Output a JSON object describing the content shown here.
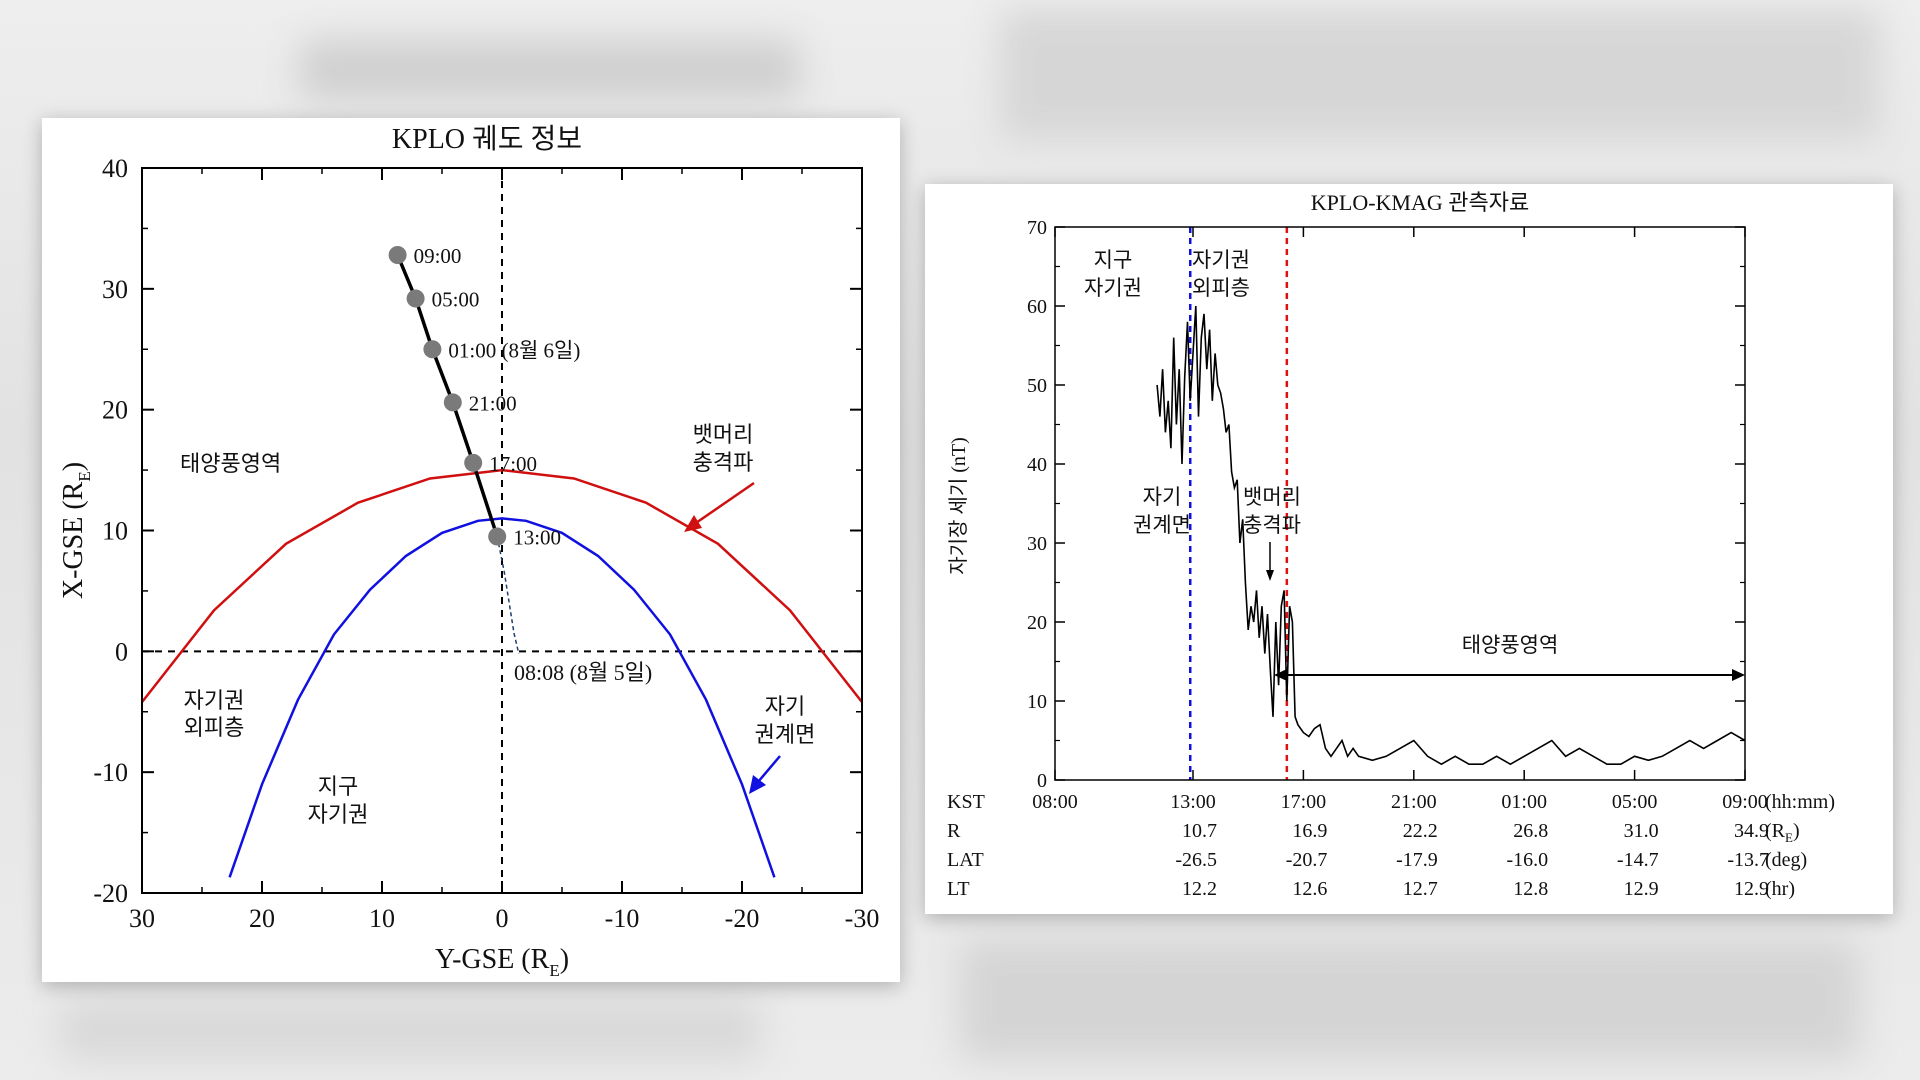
{
  "chart_data": [
    {
      "type": "line",
      "title": "KPLO 궤도 정보",
      "xlabel": "Y-GSE (R",
      "xlabel_sub": "E",
      "xlabel_close": ")",
      "ylabel": "X-GSE (R",
      "ylabel_sub": "E",
      "ylabel_close": ")",
      "xlim": [
        30,
        -30
      ],
      "ylim": [
        -20,
        40
      ],
      "x_ticks": [
        30,
        20,
        10,
        0,
        -10,
        -20,
        -30
      ],
      "y_ticks": [
        -20,
        -10,
        0,
        10,
        20,
        30,
        40
      ],
      "series": [
        {
          "color": "#d01010",
          "x": [
            30,
            24,
            18,
            12,
            6,
            0,
            -6,
            -12,
            -18,
            -24,
            -30
          ],
          "y": [
            -4.2,
            3.4,
            8.9,
            12.3,
            14.3,
            15,
            14.3,
            12.3,
            8.9,
            3.4,
            -4.2
          ]
        },
        {
          "color": "#1010e0",
          "x": [
            22.7,
            20,
            17,
            14,
            11,
            8,
            5,
            2,
            0,
            -2,
            -5,
            -8,
            -11,
            -14,
            -17,
            -20,
            -22.7
          ],
          "y": [
            -18.7,
            -11,
            -4,
            1.4,
            5.1,
            7.9,
            9.8,
            10.8,
            11,
            10.8,
            9.8,
            7.9,
            5.1,
            1.4,
            -4,
            -11,
            -18.7
          ]
        },
        {
          "color": "#000000",
          "x": [
            8.7,
            7.2,
            5.8,
            4.1,
            2.4,
            0.4
          ],
          "y": [
            32.8,
            29.2,
            25,
            20.6,
            15.6,
            9.5
          ]
        },
        {
          "color": "#1f3f6f",
          "dashed": true,
          "x": [
            0.4,
            -0.2,
            -0.6,
            -1.0,
            -1.4
          ],
          "y": [
            9.5,
            6.5,
            4,
            1.5,
            -0.2
          ]
        }
      ],
      "points": [
        {
          "x": 8.7,
          "y": 32.8,
          "label": "09:00"
        },
        {
          "x": 7.2,
          "y": 29.2,
          "label": "05:00"
        },
        {
          "x": 5.8,
          "y": 25.0,
          "label": "01:00 (8월 6일)"
        },
        {
          "x": 4.1,
          "y": 20.6,
          "label": "21:00"
        },
        {
          "x": 2.4,
          "y": 15.6,
          "label": "17:00"
        },
        {
          "x": 0.4,
          "y": 9.5,
          "label": "13:00"
        }
      ],
      "annotations": [
        {
          "text": "08:08 (8월 5일)"
        },
        {
          "lines": [
            "태양풍영역"
          ]
        },
        {
          "lines": [
            "뱃머리",
            "충격파"
          ],
          "color": "#d01010"
        },
        {
          "lines": [
            "자기권",
            "외피층"
          ]
        },
        {
          "lines": [
            "지구",
            "자기권"
          ]
        },
        {
          "lines": [
            "자기",
            "권계면"
          ],
          "color": "#1010e0"
        }
      ],
      "grid": false
    },
    {
      "type": "line",
      "title": "KPLO-KMAG  관측자료",
      "ylabel": "자기장 세기 (nT)",
      "xlim": [
        8.0,
        33.0
      ],
      "ylim": [
        0,
        70
      ],
      "x_unit": "hours KST (8월 5일 08:00 → 8월 6일 09:00)",
      "y_ticks": [
        0,
        10,
        20,
        30,
        40,
        50,
        60,
        70
      ],
      "x_ticks": [
        8,
        13,
        17,
        21,
        25,
        29,
        33
      ],
      "series": [
        {
          "name": "",
          "color": "#000000",
          "x": [
            11.7,
            11.8,
            11.9,
            12.0,
            12.1,
            12.2,
            12.3,
            12.4,
            12.5,
            12.6,
            12.7,
            12.8,
            12.9,
            13.0,
            13.1,
            13.2,
            13.3,
            13.4,
            13.5,
            13.6,
            13.7,
            13.8,
            13.9,
            14.0,
            14.1,
            14.2,
            14.3,
            14.4,
            14.5,
            14.6,
            14.7,
            14.8,
            14.9,
            15.0,
            15.1,
            15.2,
            15.3,
            15.4,
            15.5,
            15.6,
            15.7,
            15.8,
            15.9,
            16.0,
            16.1,
            16.2,
            16.3,
            16.4,
            16.5,
            16.6,
            16.7,
            16.8,
            17.0,
            17.2,
            17.4,
            17.6,
            17.8,
            18.0,
            18.2,
            18.4,
            18.6,
            18.8,
            19.0,
            19.5,
            20.0,
            20.5,
            21.0,
            21.5,
            22.0,
            22.5,
            23.0,
            23.5,
            24.0,
            24.5,
            25.0,
            25.5,
            26.0,
            26.5,
            27.0,
            27.5,
            28.0,
            28.5,
            29.0,
            29.5,
            30.0,
            30.5,
            31.0,
            31.5,
            32.0,
            32.5,
            33.0
          ],
          "y": [
            50,
            46,
            52,
            44,
            48,
            42,
            56,
            45,
            52,
            40,
            51,
            58,
            48,
            54,
            60,
            46,
            56,
            59,
            52,
            57,
            48,
            54,
            50,
            49,
            47,
            44,
            45,
            39,
            37,
            38,
            30,
            33,
            25,
            19,
            22,
            20,
            24,
            18,
            22,
            16,
            21,
            14,
            8,
            20,
            12,
            22,
            24,
            10,
            22,
            20,
            8,
            7,
            6,
            5.5,
            6.5,
            7,
            4,
            3,
            4,
            5,
            3,
            4,
            3,
            2.5,
            3,
            4,
            5,
            3,
            2,
            3,
            2,
            2,
            3,
            2,
            3,
            4,
            5,
            3,
            4,
            3,
            2,
            2,
            3,
            2.5,
            3,
            4,
            5,
            4,
            5,
            6,
            5
          ]
        }
      ],
      "annotations": [
        {
          "lines": [
            "지구",
            "자기권"
          ]
        },
        {
          "lines": [
            "자기권",
            "외피층"
          ]
        },
        {
          "lines": [
            "자기",
            "권계면"
          ]
        },
        {
          "lines": [
            "뱃머리",
            "충격파"
          ]
        },
        {
          "text": "태양풍영역"
        }
      ],
      "vlines": [
        {
          "x": 12.9,
          "color": "#1010e0"
        },
        {
          "x": 16.4,
          "color": "#e01010"
        }
      ],
      "table": {
        "rows": [
          {
            "name": "KST",
            "values": [
              "08:00",
              "13:00",
              "17:00",
              "21:00",
              "01:00",
              "05:00",
              "09:00"
            ],
            "unit": "(hh:mm)"
          },
          {
            "name": "R",
            "values": [
              "",
              "10.7",
              "16.9",
              "22.2",
              "26.8",
              "31.0",
              "34.9"
            ],
            "unit": "(R",
            "unit_sub": "E",
            "unit_close": ")"
          },
          {
            "name": "LAT",
            "values": [
              "",
              "-26.5",
              "-20.7",
              "-17.9",
              "-16.0",
              "-14.7",
              "-13.7"
            ],
            "unit": "(deg)"
          },
          {
            "name": "LT",
            "values": [
              "",
              "12.2",
              "12.6",
              "12.7",
              "12.8",
              "12.9",
              "12.9"
            ],
            "unit": "(hr)"
          }
        ]
      },
      "grid": false
    }
  ]
}
